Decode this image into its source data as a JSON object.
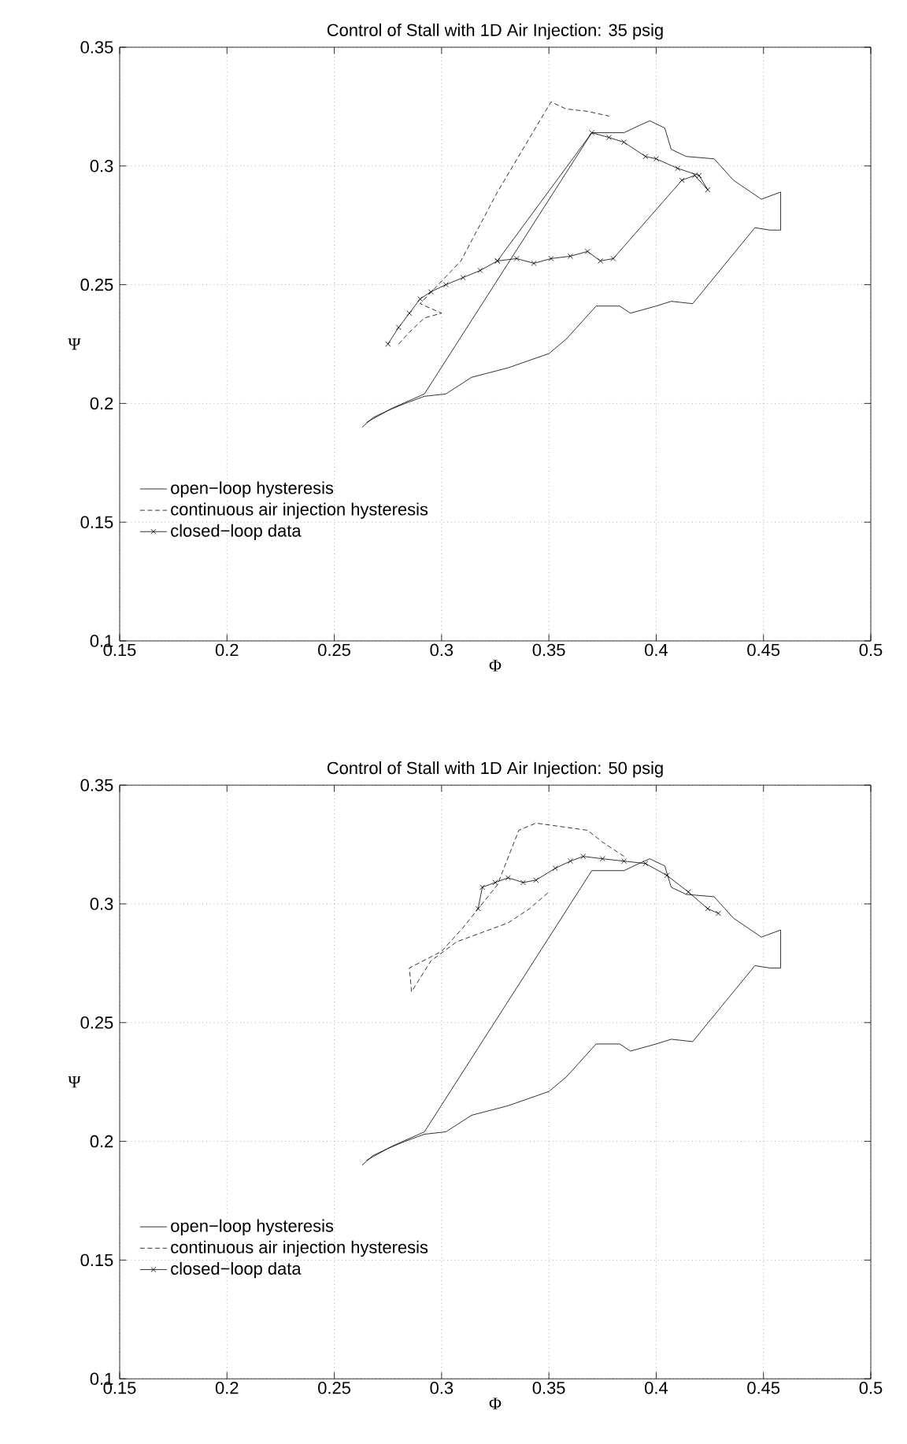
{
  "chart_data": [
    {
      "type": "line",
      "title": "Control of Stall with 1D Air Injection: 35 psig",
      "xlabel": "Φ",
      "ylabel": "Ψ",
      "xlim": [
        0.15,
        0.5
      ],
      "ylim": [
        0.1,
        0.35
      ],
      "xticks": [
        0.15,
        0.2,
        0.25,
        0.3,
        0.35,
        0.4,
        0.45,
        0.5
      ],
      "yticks": [
        0.1,
        0.15,
        0.2,
        0.25,
        0.3,
        0.35
      ],
      "grid": true,
      "legend": "left",
      "series": [
        {
          "name": "open−loop hysteresis",
          "color": "#000000",
          "line_style": "solid",
          "marker": "none",
          "x": [
            0.263,
            0.268,
            0.275,
            0.283,
            0.292,
            0.302,
            0.314,
            0.331,
            0.35,
            0.358,
            0.372,
            0.383,
            0.388,
            0.4,
            0.407,
            0.417,
            0.446,
            0.453,
            0.458,
            0.458,
            0.449,
            0.436,
            0.427,
            0.414,
            0.407,
            0.404,
            0.397,
            0.392,
            0.385,
            0.37,
            0.292,
            0.277,
            0.265
          ],
          "values": [
            0.19,
            0.194,
            0.197,
            0.2,
            0.203,
            0.204,
            0.211,
            0.215,
            0.221,
            0.227,
            0.241,
            0.241,
            0.238,
            0.241,
            0.243,
            0.242,
            0.274,
            0.273,
            0.273,
            0.289,
            0.286,
            0.294,
            0.303,
            0.304,
            0.307,
            0.316,
            0.319,
            0.317,
            0.314,
            0.314,
            0.204,
            0.198,
            0.192
          ]
        },
        {
          "name": "continuous air injection hysteresis",
          "color": "#000000",
          "line_style": "dashed",
          "marker": "none",
          "x": [
            0.28,
            0.285,
            0.292,
            0.3,
            0.29,
            0.309,
            0.326,
            0.351,
            0.358,
            0.368,
            0.378
          ],
          "values": [
            0.225,
            0.23,
            0.236,
            0.238,
            0.242,
            0.26,
            0.289,
            0.327,
            0.324,
            0.323,
            0.321
          ]
        },
        {
          "name": "closed−loop data",
          "color": "#000000",
          "line_style": "solid",
          "marker": "cross",
          "x": [
            0.275,
            0.28,
            0.285,
            0.29,
            0.295,
            0.302,
            0.31,
            0.318,
            0.326,
            0.335,
            0.343,
            0.351,
            0.36,
            0.368,
            0.374,
            0.38,
            0.412,
            0.418,
            0.424,
            0.42,
            0.41,
            0.4,
            0.395,
            0.385,
            0.378,
            0.37,
            0.326
          ],
          "values": [
            0.225,
            0.232,
            0.238,
            0.244,
            0.247,
            0.25,
            0.253,
            0.256,
            0.26,
            0.261,
            0.259,
            0.261,
            0.262,
            0.264,
            0.26,
            0.261,
            0.294,
            0.296,
            0.29,
            0.296,
            0.299,
            0.303,
            0.304,
            0.31,
            0.312,
            0.314,
            0.26
          ]
        }
      ]
    },
    {
      "type": "line",
      "title": "Control of Stall with 1D Air Injection: 50 psig",
      "xlabel": "Φ",
      "ylabel": "Ψ",
      "xlim": [
        0.15,
        0.5
      ],
      "ylim": [
        0.1,
        0.35
      ],
      "xticks": [
        0.15,
        0.2,
        0.25,
        0.3,
        0.35,
        0.4,
        0.45,
        0.5
      ],
      "yticks": [
        0.1,
        0.15,
        0.2,
        0.25,
        0.3,
        0.35
      ],
      "grid": true,
      "legend": "left",
      "series": [
        {
          "name": "open−loop hysteresis",
          "color": "#000000",
          "line_style": "solid",
          "marker": "none",
          "x": [
            0.263,
            0.268,
            0.275,
            0.283,
            0.292,
            0.302,
            0.314,
            0.331,
            0.35,
            0.358,
            0.372,
            0.383,
            0.388,
            0.4,
            0.407,
            0.417,
            0.446,
            0.453,
            0.458,
            0.458,
            0.449,
            0.436,
            0.427,
            0.414,
            0.407,
            0.404,
            0.397,
            0.392,
            0.385,
            0.37,
            0.292,
            0.277,
            0.265
          ],
          "values": [
            0.19,
            0.194,
            0.197,
            0.2,
            0.203,
            0.204,
            0.211,
            0.215,
            0.221,
            0.227,
            0.241,
            0.241,
            0.238,
            0.241,
            0.243,
            0.242,
            0.274,
            0.273,
            0.273,
            0.289,
            0.286,
            0.294,
            0.303,
            0.304,
            0.307,
            0.316,
            0.319,
            0.317,
            0.314,
            0.314,
            0.204,
            0.198,
            0.192
          ]
        },
        {
          "name": "continuous air injection hysteresis",
          "color": "#000000",
          "line_style": "dashed",
          "marker": "none",
          "x": [
            0.385,
            0.375,
            0.368,
            0.344,
            0.336,
            0.326,
            0.31,
            0.3,
            0.285,
            0.286,
            0.295,
            0.307,
            0.322,
            0.331,
            0.341,
            0.35
          ],
          "values": [
            0.32,
            0.326,
            0.331,
            0.334,
            0.331,
            0.308,
            0.29,
            0.28,
            0.273,
            0.263,
            0.276,
            0.284,
            0.289,
            0.292,
            0.298,
            0.305
          ]
        },
        {
          "name": "closed−loop data",
          "color": "#000000",
          "line_style": "solid",
          "marker": "cross",
          "x": [
            0.317,
            0.319,
            0.325,
            0.331,
            0.338,
            0.344,
            0.353,
            0.36,
            0.366,
            0.375,
            0.385,
            0.395,
            0.405,
            0.415,
            0.424,
            0.429
          ],
          "values": [
            0.298,
            0.307,
            0.309,
            0.311,
            0.309,
            0.31,
            0.315,
            0.318,
            0.32,
            0.319,
            0.318,
            0.317,
            0.312,
            0.305,
            0.298,
            0.296
          ]
        }
      ]
    }
  ]
}
